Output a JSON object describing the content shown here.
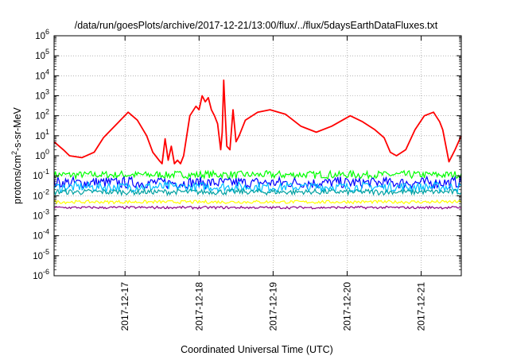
{
  "chart_data": {
    "type": "line",
    "title": "/data/run/goesPlots/archive/2017-12-21/13:00/flux/../flux/5daysEarthDataFluxes.txt",
    "xlabel": "Coordinated Universal Time (UTC)",
    "ylabel": {
      "prefix": "protons/cm",
      "sup": "2",
      "suffix": "-s-sr-MeV"
    },
    "x_date_start": "2017-12-16T01:00",
    "x_date_end": "2017-12-21T13:00",
    "xticks": [
      "2017-12-17",
      "2017-12-18",
      "2017-12-19",
      "2017-12-20",
      "2017-12-21"
    ],
    "yscale": "log",
    "ylim": [
      1e-06,
      1000000.0
    ],
    "yticks": [
      {
        "base": "10",
        "exp": "6"
      },
      {
        "base": "10",
        "exp": "5"
      },
      {
        "base": "10",
        "exp": "4"
      },
      {
        "base": "10",
        "exp": "3"
      },
      {
        "base": "10",
        "exp": "2"
      },
      {
        "base": "10",
        "exp": "1"
      },
      {
        "base": "10",
        "exp": "0"
      },
      {
        "base": "10",
        "exp": "-1"
      },
      {
        "base": "10",
        "exp": "-2"
      },
      {
        "base": "10",
        "exp": "-3"
      },
      {
        "base": "10",
        "exp": "-4"
      },
      {
        "base": "10",
        "exp": "-5"
      },
      {
        "base": "10",
        "exp": "-6"
      }
    ],
    "grid": true,
    "series": [
      {
        "color": "#ff0000",
        "x": [
          "2017-12-16T01:00",
          "2017-12-16T04:00",
          "2017-12-16T06:00",
          "2017-12-16T10:00",
          "2017-12-16T14:00",
          "2017-12-16T17:00",
          "2017-12-16T22:00",
          "2017-12-17T01:00",
          "2017-12-17T04:00",
          "2017-12-17T07:00",
          "2017-12-17T09:00",
          "2017-12-17T11:00",
          "2017-12-17T12:00",
          "2017-12-17T13:00",
          "2017-12-17T14:00",
          "2017-12-17T15:00",
          "2017-12-17T16:00",
          "2017-12-17T17:00",
          "2017-12-17T18:00",
          "2017-12-17T19:00",
          "2017-12-17T21:00",
          "2017-12-17T23:00",
          "2017-12-18T00:00",
          "2017-12-18T01:00",
          "2017-12-18T02:00",
          "2017-12-18T03:00",
          "2017-12-18T04:00",
          "2017-12-18T05:00",
          "2017-12-18T06:00",
          "2017-12-18T07:00",
          "2017-12-18T07:30",
          "2017-12-18T08:00",
          "2017-12-18T08:30",
          "2017-12-18T09:00",
          "2017-12-18T10:00",
          "2017-12-18T11:00",
          "2017-12-18T12:00",
          "2017-12-18T13:00",
          "2017-12-18T15:00",
          "2017-12-18T19:00",
          "2017-12-18T23:00",
          "2017-12-19T04:00",
          "2017-12-19T09:00",
          "2017-12-19T14:00",
          "2017-12-19T19:00",
          "2017-12-20T01:00",
          "2017-12-20T05:00",
          "2017-12-20T09:00",
          "2017-12-20T12:00",
          "2017-12-20T14:00",
          "2017-12-20T16:00",
          "2017-12-20T19:00",
          "2017-12-20T22:00",
          "2017-12-21T01:00",
          "2017-12-21T04:00",
          "2017-12-21T06:00",
          "2017-12-21T07:00",
          "2017-12-21T09:00",
          "2017-12-21T11:00",
          "2017-12-21T13:00"
        ],
        "y": [
          5,
          2,
          1,
          0.8,
          1.5,
          8,
          50,
          150,
          60,
          10,
          1.5,
          0.6,
          0.4,
          7,
          0.6,
          3,
          0.4,
          0.6,
          0.4,
          1,
          100,
          300,
          200,
          1000,
          500,
          800,
          200,
          100,
          40,
          2,
          15,
          6000,
          100,
          3,
          2,
          200,
          5,
          10,
          60,
          150,
          200,
          120,
          30,
          15,
          30,
          100,
          50,
          20,
          8,
          1.5,
          1,
          2,
          20,
          100,
          150,
          50,
          20,
          0.5,
          2,
          10
        ]
      },
      {
        "color": "#00ff00",
        "band": [
          0.07,
          0.18
        ]
      },
      {
        "color": "#0000ff",
        "band": [
          0.022,
          0.09
        ]
      },
      {
        "color": "#00bfff",
        "band": [
          0.015,
          0.05
        ]
      },
      {
        "color": "#00a0a0",
        "band": [
          0.011,
          0.022
        ]
      },
      {
        "color": "#ffff00",
        "band": [
          0.004,
          0.006
        ]
      },
      {
        "color": "#8b008b",
        "band": [
          0.0022,
          0.003
        ]
      }
    ]
  }
}
